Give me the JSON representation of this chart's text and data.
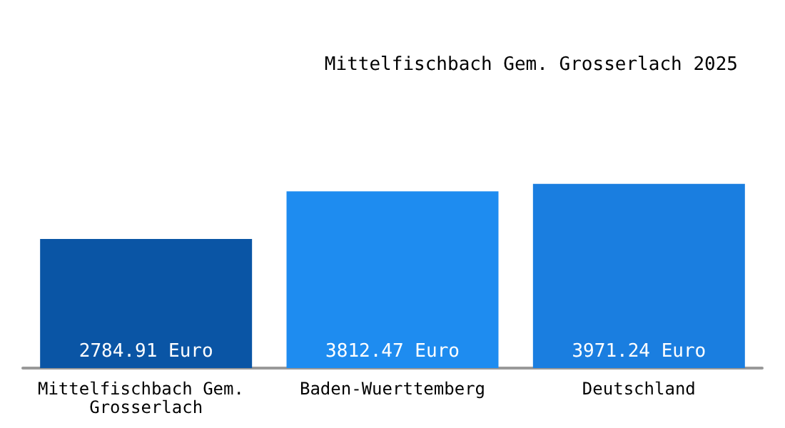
{
  "chart_data": {
    "type": "bar",
    "title": "Mittelfischbach Gem. Grosserlach 2025",
    "categories": [
      "Mittelfischbach Gem. Grosserlach",
      "Baden-Wuerttemberg",
      "Deutschland"
    ],
    "values": [
      2784.91,
      3812.47,
      3971.24
    ],
    "colors": [
      "#0a55a5",
      "#1e8cf0",
      "#1a7ee0"
    ],
    "value_labels": [
      "2784.91 Euro",
      "3812.47 Euro",
      "3971.24 Euro"
    ]
  }
}
